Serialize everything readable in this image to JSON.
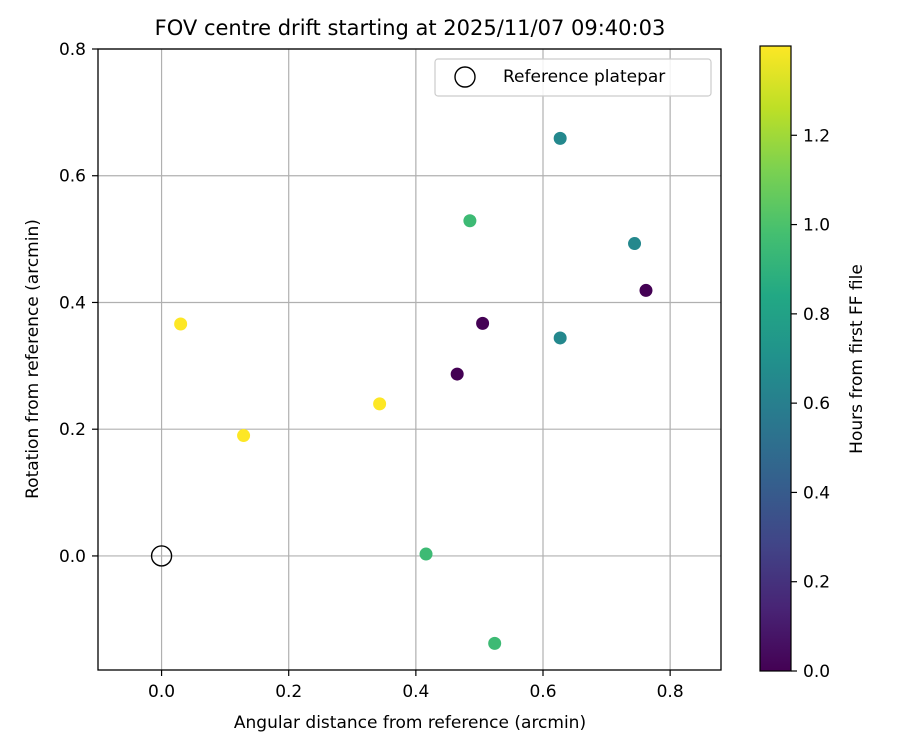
{
  "chart_data": {
    "type": "scatter",
    "title": "FOV centre drift starting at 2025/11/07 09:40:03",
    "xlabel": "Angular distance from reference (arcmin)",
    "ylabel": "Rotation from reference (arcmin)",
    "xlim": [
      -0.1,
      0.88
    ],
    "ylim": [
      -0.18,
      0.8
    ],
    "xticks": [
      0.0,
      0.2,
      0.4,
      0.6,
      0.8
    ],
    "xtick_labels": [
      "0.0",
      "0.2",
      "0.4",
      "0.6",
      "0.8"
    ],
    "yticks": [
      0.0,
      0.2,
      0.4,
      0.6,
      0.8
    ],
    "ytick_labels": [
      "0.0",
      "0.2",
      "0.4",
      "0.6",
      "0.8"
    ],
    "grid": true,
    "colormap": "viridis",
    "colorbar": {
      "label": "Hours from first FF file",
      "range": [
        0.0,
        1.4
      ],
      "ticks": [
        0.0,
        0.2,
        0.4,
        0.6,
        0.8,
        1.0,
        1.2
      ],
      "tick_labels": [
        "0.0",
        "0.2",
        "0.4",
        "0.6",
        "0.8",
        "1.0",
        "1.2"
      ]
    },
    "legend": {
      "position": "top-right",
      "entries": [
        {
          "label": "Reference platepar",
          "marker": "open-circle"
        }
      ]
    },
    "reference_point": {
      "x": 0.0,
      "y": 0.0,
      "label": "Reference platepar"
    },
    "points": [
      {
        "x": 0.465,
        "y": 0.287,
        "hours": 0.0
      },
      {
        "x": 0.505,
        "y": 0.367,
        "hours": 0.0
      },
      {
        "x": 0.762,
        "y": 0.419,
        "hours": 0.0
      },
      {
        "x": 0.627,
        "y": 0.659,
        "hours": 0.65
      },
      {
        "x": 0.744,
        "y": 0.493,
        "hours": 0.65
      },
      {
        "x": 0.627,
        "y": 0.344,
        "hours": 0.65
      },
      {
        "x": 0.485,
        "y": 0.529,
        "hours": 0.95
      },
      {
        "x": 0.416,
        "y": 0.003,
        "hours": 0.95
      },
      {
        "x": 0.524,
        "y": -0.138,
        "hours": 0.95
      },
      {
        "x": 0.03,
        "y": 0.366,
        "hours": 1.4
      },
      {
        "x": 0.129,
        "y": 0.19,
        "hours": 1.4
      },
      {
        "x": 0.343,
        "y": 0.24,
        "hours": 1.4
      }
    ]
  }
}
